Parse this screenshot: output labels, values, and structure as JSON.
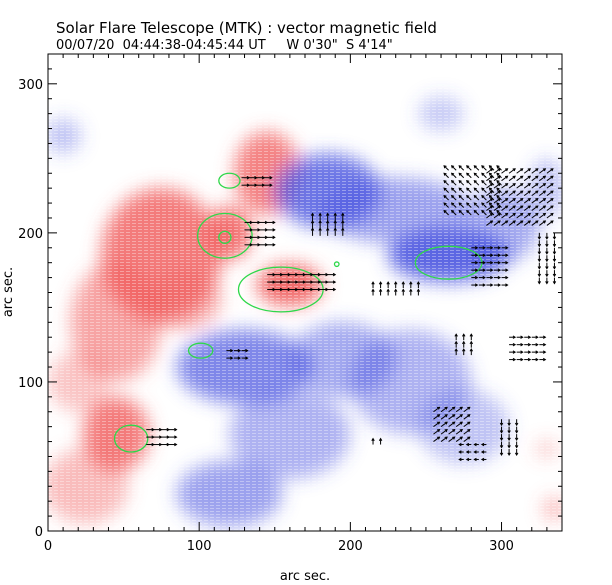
{
  "header": {
    "title": "Solar Flare Telescope (MTK) : vector magnetic field",
    "subtitle": "00/07/20  04:44:38-04:45:44 UT     W 0'30\"  S 4'14\""
  },
  "chart_data": {
    "type": "heatmap",
    "title": "Solar Flare Telescope (MTK) : vector magnetic field",
    "subtitle": "00/07/20  04:44:38-04:45:44 UT     W 0'30\"  S 4'14\"",
    "xlabel": "arc sec.",
    "ylabel": "arc sec.",
    "xlim": [
      0,
      340
    ],
    "ylim": [
      0,
      320
    ],
    "xticks": [
      0,
      100,
      200,
      300
    ],
    "yticks": [
      0,
      100,
      200,
      300
    ],
    "colors": {
      "positive": "#f05a5a",
      "negative": "#4a55e0",
      "contour": "#2ed84a",
      "vector": "#000000"
    },
    "positive_regions": [
      {
        "x": 145,
        "y": 240,
        "rx": 22,
        "ry": 28,
        "v": 0.75
      },
      {
        "x": 75,
        "y": 185,
        "rx": 40,
        "ry": 45,
        "v": 0.8
      },
      {
        "x": 120,
        "y": 200,
        "rx": 15,
        "ry": 18,
        "v": 0.85
      },
      {
        "x": 160,
        "y": 165,
        "rx": 22,
        "ry": 14,
        "v": 0.9
      },
      {
        "x": 45,
        "y": 140,
        "rx": 30,
        "ry": 40,
        "v": 0.55
      },
      {
        "x": 90,
        "y": 155,
        "rx": 25,
        "ry": 20,
        "v": 0.45
      },
      {
        "x": 45,
        "y": 65,
        "rx": 22,
        "ry": 25,
        "v": 0.8
      },
      {
        "x": 25,
        "y": 30,
        "rx": 28,
        "ry": 25,
        "v": 0.4
      },
      {
        "x": 20,
        "y": 100,
        "rx": 20,
        "ry": 20,
        "v": 0.35
      },
      {
        "x": 335,
        "y": 15,
        "rx": 8,
        "ry": 8,
        "v": 0.4
      },
      {
        "x": 330,
        "y": 55,
        "rx": 8,
        "ry": 6,
        "v": 0.3
      }
    ],
    "negative_regions": [
      {
        "x": 185,
        "y": 228,
        "rx": 35,
        "ry": 25,
        "v": 0.8
      },
      {
        "x": 230,
        "y": 215,
        "rx": 50,
        "ry": 22,
        "v": 0.55
      },
      {
        "x": 265,
        "y": 185,
        "rx": 40,
        "ry": 18,
        "v": 0.9
      },
      {
        "x": 300,
        "y": 205,
        "rx": 25,
        "ry": 25,
        "v": 0.5
      },
      {
        "x": 130,
        "y": 110,
        "rx": 45,
        "ry": 25,
        "v": 0.7
      },
      {
        "x": 195,
        "y": 115,
        "rx": 35,
        "ry": 25,
        "v": 0.5
      },
      {
        "x": 240,
        "y": 100,
        "rx": 40,
        "ry": 35,
        "v": 0.45
      },
      {
        "x": 160,
        "y": 65,
        "rx": 40,
        "ry": 30,
        "v": 0.45
      },
      {
        "x": 120,
        "y": 25,
        "rx": 35,
        "ry": 22,
        "v": 0.55
      },
      {
        "x": 275,
        "y": 70,
        "rx": 30,
        "ry": 25,
        "v": 0.35
      },
      {
        "x": 10,
        "y": 265,
        "rx": 12,
        "ry": 12,
        "v": 0.35
      },
      {
        "x": 260,
        "y": 280,
        "rx": 15,
        "ry": 12,
        "v": 0.3
      },
      {
        "x": 330,
        "y": 230,
        "rx": 12,
        "ry": 20,
        "v": 0.35
      }
    ],
    "contours": [
      {
        "x": 120,
        "y": 235,
        "rx": 7,
        "ry": 5
      },
      {
        "x": 117,
        "y": 198,
        "rx": 18,
        "ry": 15
      },
      {
        "x": 117,
        "y": 197,
        "rx": 4,
        "ry": 4
      },
      {
        "x": 154,
        "y": 162,
        "rx": 28,
        "ry": 15
      },
      {
        "x": 265,
        "y": 180,
        "rx": 22,
        "ry": 11
      },
      {
        "x": 101,
        "y": 121,
        "rx": 8,
        "ry": 5
      },
      {
        "x": 55,
        "y": 62,
        "rx": 11,
        "ry": 9
      },
      {
        "x": 191,
        "y": 179,
        "rx": 1.5,
        "ry": 1.5
      }
    ],
    "vector_fields": [
      {
        "x0": 128,
        "x1": 145,
        "y0": 232,
        "y1": 238,
        "dx": 5,
        "dy": 0
      },
      {
        "x0": 130,
        "x1": 145,
        "y0": 192,
        "y1": 210,
        "dx": 5,
        "dy": 0
      },
      {
        "x0": 145,
        "x1": 185,
        "y0": 162,
        "y1": 172,
        "dx": 5,
        "dy": 0
      },
      {
        "x0": 175,
        "x1": 195,
        "y0": 198,
        "y1": 210,
        "dx": 0,
        "dy": 5
      },
      {
        "x0": 215,
        "x1": 245,
        "y0": 158,
        "y1": 165,
        "dx": 0,
        "dy": 4
      },
      {
        "x0": 265,
        "x1": 300,
        "y0": 212,
        "y1": 245,
        "dx": -3,
        "dy": 3
      },
      {
        "x0": 290,
        "x1": 330,
        "y0": 205,
        "y1": 240,
        "dx": 4,
        "dy": 3
      },
      {
        "x0": 280,
        "x1": 300,
        "y0": 165,
        "y1": 190,
        "dx": 4,
        "dy": 0
      },
      {
        "x0": 325,
        "x1": 335,
        "y0": 170,
        "y1": 200,
        "dx": 0,
        "dy": -4
      },
      {
        "x0": 118,
        "x1": 128,
        "y0": 116,
        "y1": 124,
        "dx": 4,
        "dy": 0
      },
      {
        "x0": 270,
        "x1": 280,
        "y0": 118,
        "y1": 128,
        "dx": 0,
        "dy": 4
      },
      {
        "x0": 305,
        "x1": 325,
        "y0": 115,
        "y1": 130,
        "dx": 4,
        "dy": 0
      },
      {
        "x0": 65,
        "x1": 80,
        "y0": 58,
        "y1": 70,
        "dx": 5,
        "dy": 0
      },
      {
        "x0": 255,
        "x1": 275,
        "y0": 60,
        "y1": 80,
        "dx": 4,
        "dy": 3
      },
      {
        "x0": 275,
        "x1": 290,
        "y0": 48,
        "y1": 60,
        "dx": -3,
        "dy": 0
      },
      {
        "x0": 300,
        "x1": 310,
        "y0": 55,
        "y1": 75,
        "dx": 0,
        "dy": -4
      },
      {
        "x0": 215,
        "x1": 220,
        "y0": 58,
        "y1": 62,
        "dx": 0,
        "dy": 4
      }
    ]
  }
}
